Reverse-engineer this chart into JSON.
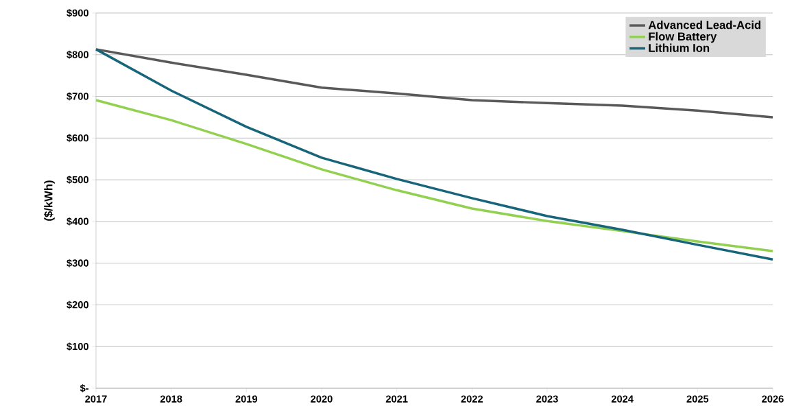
{
  "chart_data": {
    "type": "line",
    "ylabel": "($/kWh)",
    "categories": [
      "2017",
      "2018",
      "2019",
      "2020",
      "2021",
      "2022",
      "2023",
      "2024",
      "2025",
      "2026"
    ],
    "series": [
      {
        "name": "Advanced Lead-Acid",
        "color": "#595959",
        "values": [
          813,
          781,
          752,
          721,
          707,
          691,
          684,
          678,
          666,
          650
        ]
      },
      {
        "name": "Flow Battery",
        "color": "#92d050",
        "values": [
          691,
          643,
          586,
          525,
          475,
          431,
          401,
          377,
          352,
          329
        ]
      },
      {
        "name": "Lithium Ion",
        "color": "#17657a",
        "values": [
          813,
          714,
          627,
          553,
          502,
          456,
          413,
          380,
          344,
          309
        ]
      }
    ],
    "ylim": [
      0,
      900
    ],
    "yticks": [
      {
        "value": 0,
        "label": "$-"
      },
      {
        "value": 100,
        "label": "$100"
      },
      {
        "value": 200,
        "label": "$200"
      },
      {
        "value": 300,
        "label": "$300"
      },
      {
        "value": 400,
        "label": "$400"
      },
      {
        "value": 500,
        "label": "$500"
      },
      {
        "value": 600,
        "label": "$600"
      },
      {
        "value": 700,
        "label": "$700"
      },
      {
        "value": 800,
        "label": "$800"
      },
      {
        "value": 900,
        "label": "$900"
      }
    ],
    "grid": "y",
    "legend": "top right",
    "marker": "none",
    "line_style": "solid"
  }
}
